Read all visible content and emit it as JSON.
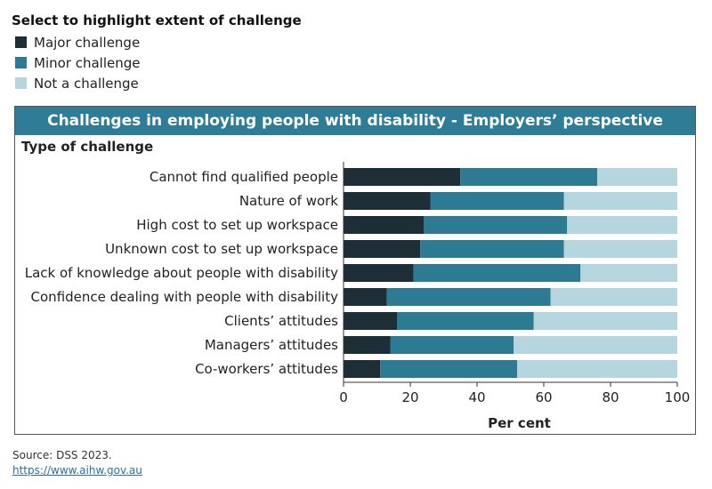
{
  "legend": {
    "title": "Select to highlight extent of challenge",
    "items": [
      {
        "label": "Major challenge",
        "color": "#1d2e37"
      },
      {
        "label": "Minor challenge",
        "color": "#2d7a93"
      },
      {
        "label": "Not a challenge",
        "color": "#b5d5df"
      }
    ]
  },
  "chart_data": {
    "type": "bar",
    "orientation": "horizontal",
    "stacked": true,
    "title": "Challenges in employing people with disability - Employers’ perspective",
    "ylabel": "Type of challenge",
    "xlabel": "Per cent",
    "xlim": [
      0,
      100
    ],
    "xticks": [
      0,
      20,
      40,
      60,
      80,
      100
    ],
    "categories": [
      "Cannot find qualified people",
      "Nature of work",
      "High cost to set up workspace",
      "Unknown cost to set up workspace",
      "Lack of knowledge about people with disability",
      "Confidence dealing with people with disability",
      "Clients’ attitudes",
      "Managers’ attitudes",
      "Co-workers’ attitudes"
    ],
    "series": [
      {
        "name": "Major challenge",
        "color": "#1d2e37",
        "values": [
          35,
          26,
          24,
          23,
          21,
          13,
          16,
          14,
          11
        ]
      },
      {
        "name": "Minor challenge",
        "color": "#2d7a93",
        "values": [
          41,
          40,
          43,
          43,
          50,
          49,
          41,
          37,
          41
        ]
      },
      {
        "name": "Not a challenge",
        "color": "#b5d5df",
        "values": [
          24,
          34,
          33,
          34,
          29,
          38,
          43,
          49,
          48
        ]
      }
    ]
  },
  "footer": {
    "source": "Source: DSS 2023.",
    "link": "https://www.aihw.gov.au"
  }
}
